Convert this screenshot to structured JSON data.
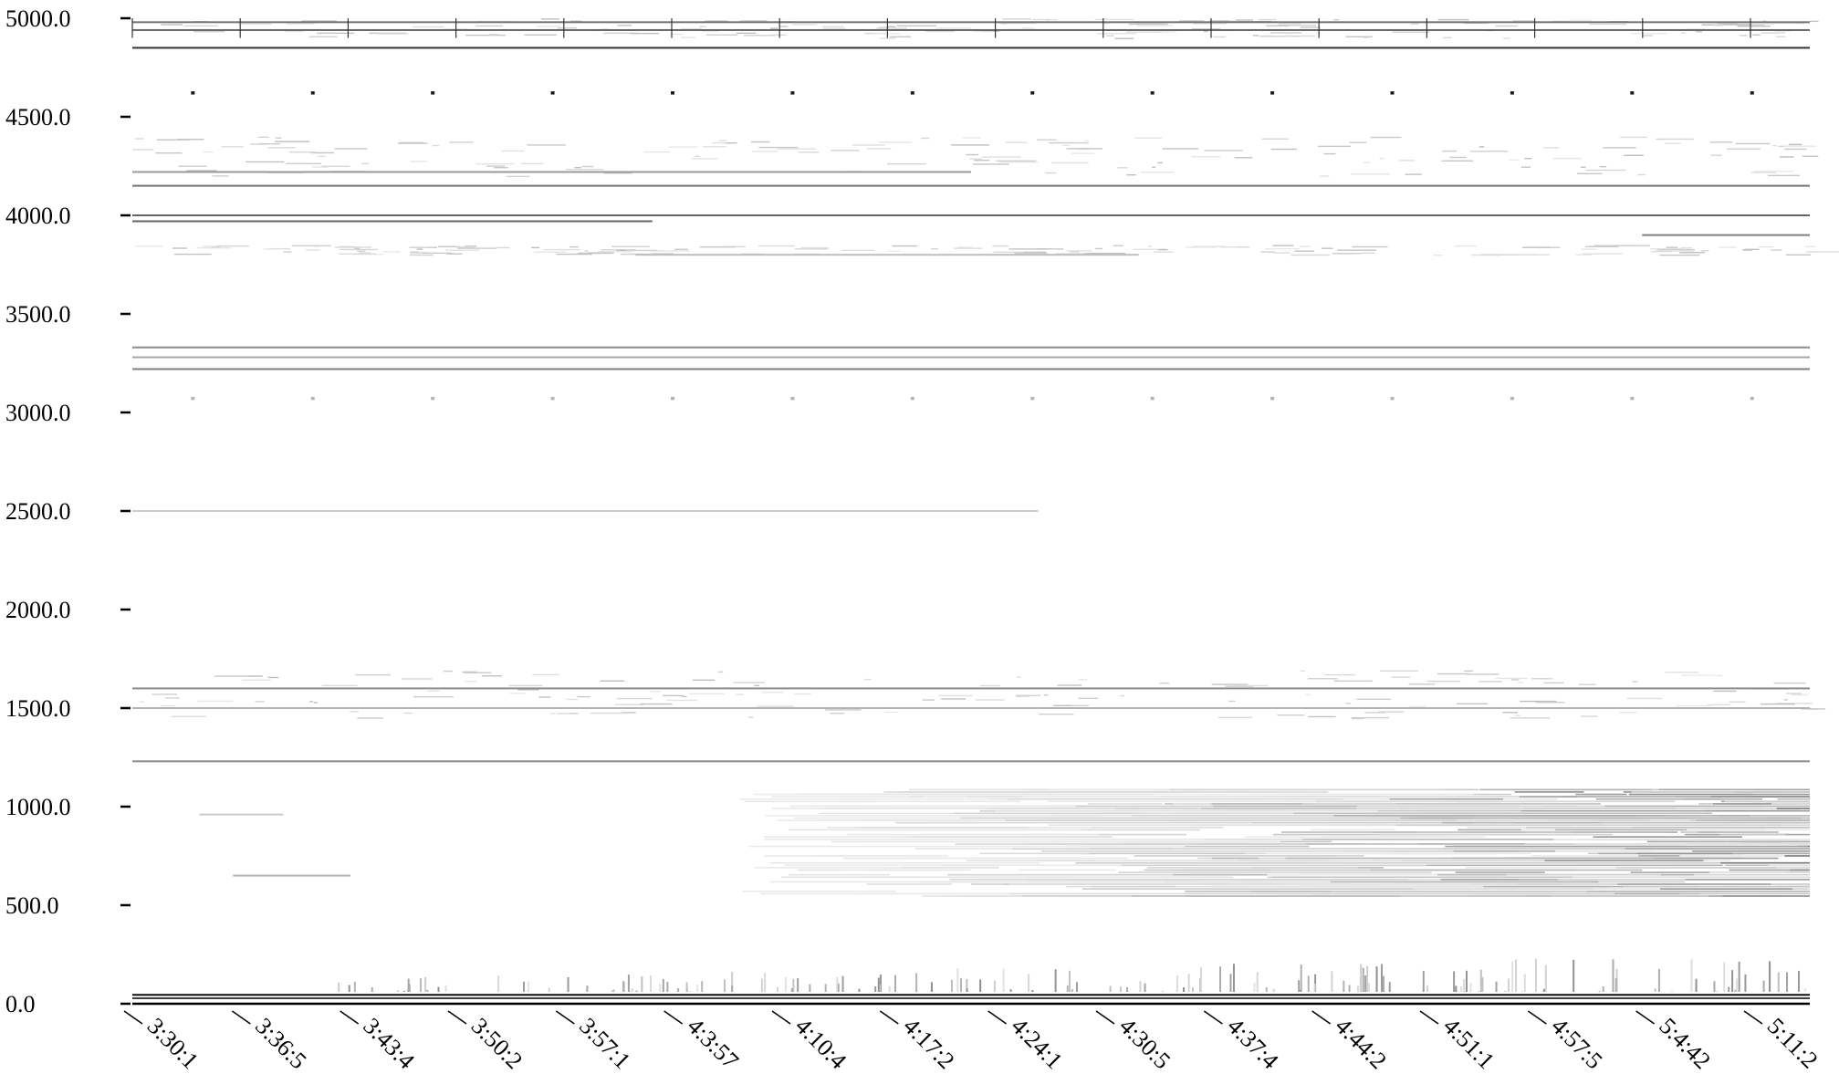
{
  "chart_data": {
    "type": "heatmap",
    "title": "",
    "xlabel": "",
    "ylabel": "",
    "ylim": [
      0,
      5000
    ],
    "y_ticks": [
      "0.0",
      "500.0",
      "1000.0",
      "1500.0",
      "2000.0",
      "2500.0",
      "3000.0",
      "3500.0",
      "4000.0",
      "4500.0",
      "5000.0"
    ],
    "x_ticks": [
      "3:30:1",
      "3:36:5",
      "3:43:4",
      "3:50:2",
      "3:57:1",
      "4:3:57",
      "4:10:4",
      "4:17:2",
      "4:24:1",
      "4:30:5",
      "4:37:4",
      "4:44:2",
      "4:51:1",
      "4:57:5",
      "5:4:42",
      "5:11:2"
    ],
    "grid": false,
    "legend": "none",
    "colormap": [
      "#ffffff",
      "#000000"
    ],
    "steady_tones": [
      {
        "y": 4940,
        "from": 0,
        "to": 1,
        "intensity": 0.6
      },
      {
        "y": 4980,
        "from": 0,
        "to": 1,
        "intensity": 0.55
      },
      {
        "y": 4850,
        "from": 0,
        "to": 1,
        "intensity": 0.8
      },
      {
        "y": 4220,
        "from": 0,
        "to": 0.5,
        "intensity": 0.4
      },
      {
        "y": 4150,
        "from": 0,
        "to": 1,
        "intensity": 0.55
      },
      {
        "y": 4000,
        "from": 0,
        "to": 1,
        "intensity": 0.6
      },
      {
        "y": 3970,
        "from": 0,
        "to": 0.31,
        "intensity": 0.6
      },
      {
        "y": 3900,
        "from": 0.9,
        "to": 1,
        "intensity": 0.5
      },
      {
        "y": 3800,
        "from": 0.3,
        "to": 0.6,
        "intensity": 0.25
      },
      {
        "y": 3330,
        "from": 0,
        "to": 1,
        "intensity": 0.45
      },
      {
        "y": 3280,
        "from": 0,
        "to": 1,
        "intensity": 0.35
      },
      {
        "y": 3220,
        "from": 0,
        "to": 1,
        "intensity": 0.5
      },
      {
        "y": 2500,
        "from": 0,
        "to": 0.54,
        "intensity": 0.2
      },
      {
        "y": 1600,
        "from": 0,
        "to": 1,
        "intensity": 0.45
      },
      {
        "y": 1500,
        "from": 0,
        "to": 1,
        "intensity": 0.3
      },
      {
        "y": 1230,
        "from": 0,
        "to": 1,
        "intensity": 0.45
      },
      {
        "y": 960,
        "from": 0.04,
        "to": 0.09,
        "intensity": 0.2
      },
      {
        "y": 650,
        "from": 0.06,
        "to": 0.13,
        "intensity": 0.3
      },
      {
        "y": 45,
        "from": 0,
        "to": 1,
        "intensity": 0.95
      }
    ],
    "dense_region": {
      "x_from": 0.36,
      "x_to": 1,
      "y_from": 550,
      "y_to": 1100,
      "peak_intensity": 0.8
    },
    "pulse_rows": [
      {
        "y": 4620,
        "intensity": 0.9
      },
      {
        "y": 3070,
        "intensity": 0.3
      }
    ],
    "burst_band": {
      "y_from": 60,
      "y_to": 250,
      "intensity": 0.5
    }
  }
}
